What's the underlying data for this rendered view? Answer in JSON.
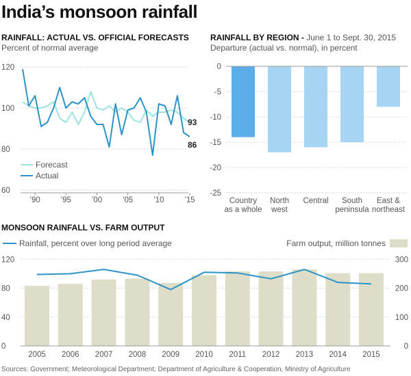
{
  "title": "India’s monsoon rainfall",
  "source": "Sources: Government; Meteorological Department; Department of Agriculture & Cooperation, Ministry of Agriculture",
  "colors": {
    "actual": "#2b93c8",
    "forecast": "#9fe3e0",
    "bar_highlight": "#5aaee8",
    "bar": "#a6d5f4",
    "farm_bar": "#dedec8",
    "grid": "#d6d6d6"
  },
  "chart_data": [
    {
      "id": "forecast_vs_actual",
      "type": "line",
      "title": "RAINFALL: ACTUAL VS. OFFICIAL FORECASTS",
      "subtitle": "Percent of normal average",
      "x": [
        1988,
        1989,
        1990,
        1991,
        1992,
        1993,
        1994,
        1995,
        1996,
        1997,
        1998,
        1999,
        2000,
        2001,
        2002,
        2003,
        2004,
        2005,
        2006,
        2007,
        2008,
        2009,
        2010,
        2011,
        2012,
        2013,
        2014,
        2015
      ],
      "x_tick_values": [
        1990,
        1995,
        2000,
        2005,
        2010,
        2015
      ],
      "x_tick_labels": [
        "’90",
        "’95",
        "’00",
        "’05",
        "’10",
        "’15"
      ],
      "y_ticks": [
        60,
        80,
        100,
        120
      ],
      "ylim": [
        60,
        122
      ],
      "series": [
        {
          "name": "Forecast",
          "values": [
            103,
            101,
            100,
            100,
            101,
            103,
            95,
            93,
            98,
            92,
            98,
            108,
            100,
            99,
            101,
            98,
            100,
            98,
            94,
            93,
            99,
            96,
            98,
            98,
            99,
            98,
            95,
            93
          ]
        },
        {
          "name": "Actual",
          "values": [
            119,
            101,
            106,
            91,
            93,
            100,
            110,
            100,
            103,
            102,
            105,
            96,
            92,
            92,
            81,
            102,
            87,
            99,
            100,
            105,
            98,
            77,
            102,
            101,
            92,
            106,
            88,
            86
          ]
        }
      ],
      "end_labels": [
        "93",
        "86"
      ],
      "legend": "bottom-left"
    },
    {
      "id": "by_region",
      "type": "bar",
      "title": "RAINFALL BY REGION -",
      "title_note": "June 1 to Sept. 30, 2015",
      "subtitle": "Departure (actual vs. normal), in percent",
      "categories": [
        [
          "Country",
          "as a whole"
        ],
        [
          "North",
          "west"
        ],
        [
          "Central"
        ],
        [
          "South",
          "peninsula"
        ],
        [
          "East &",
          "northeast"
        ]
      ],
      "values": [
        -14,
        -17,
        -16,
        -15,
        -8
      ],
      "y_ticks": [
        0,
        -5,
        -10,
        -15,
        -20,
        -25
      ],
      "ylim": [
        -25,
        0
      ]
    },
    {
      "id": "rain_vs_farm",
      "type": "bar+line",
      "title": "MONSOON RAINFALL VS. FARM OUTPUT",
      "categories": [
        "2005",
        "2006",
        "2007",
        "2008",
        "2009",
        "2010",
        "2011",
        "2012",
        "2013",
        "2014",
        "2015"
      ],
      "series": [
        {
          "name": "Rainfall, percent over long period average",
          "type": "line",
          "axis": "left",
          "values": [
            99,
            100,
            106,
            98,
            78,
            102,
            101,
            93,
            106,
            88,
            86
          ]
        },
        {
          "name": "Farm output, million tonnes",
          "type": "bar",
          "axis": "right",
          "values": [
            208,
            215,
            230,
            233,
            218,
            245,
            258,
            258,
            265,
            252,
            252
          ]
        }
      ],
      "y_left_ticks": [
        0,
        40,
        80,
        120
      ],
      "ylim_left": [
        0,
        125
      ],
      "y_right_ticks": [
        0,
        100,
        200,
        300
      ],
      "ylim_right": [
        0,
        312.5
      ]
    }
  ]
}
